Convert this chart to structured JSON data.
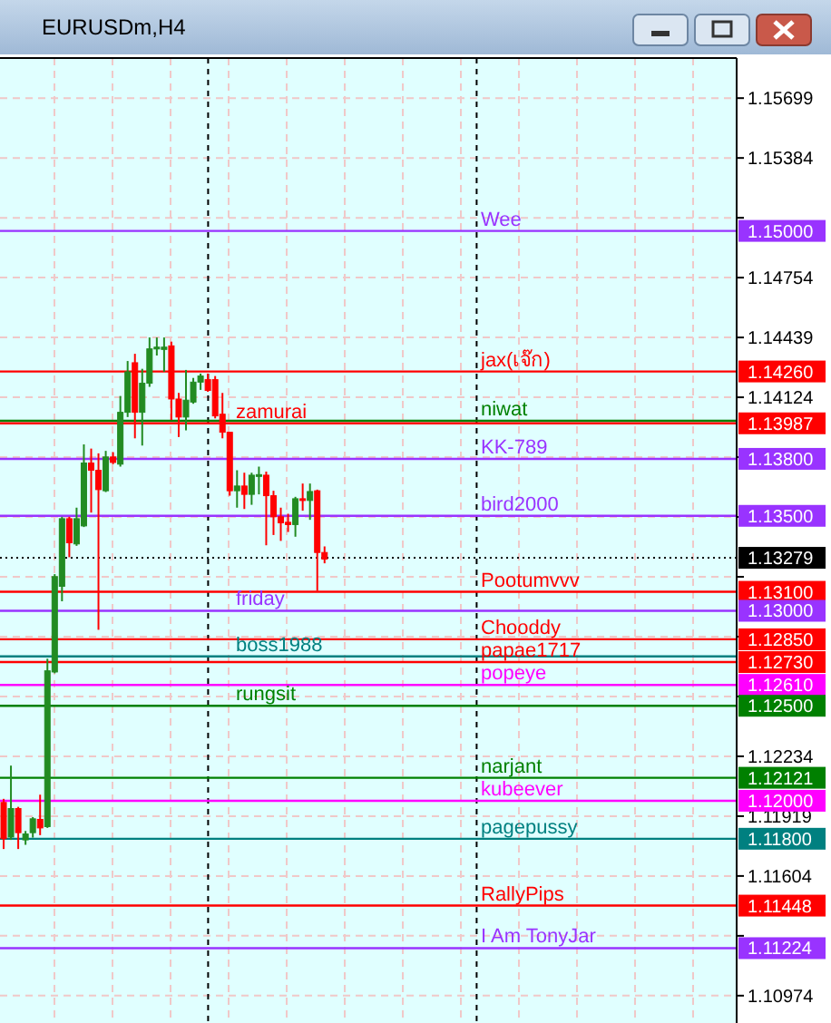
{
  "chart_data": {
    "type": "candlestick",
    "title": "EURUSDm,H4",
    "categories": [
      null,
      null,
      null,
      null,
      null,
      null,
      null,
      null,
      null,
      null,
      null,
      null,
      null,
      null,
      null,
      null,
      null,
      null,
      null,
      null,
      null,
      null,
      null,
      null,
      null,
      null,
      null,
      null,
      null,
      null,
      null,
      null,
      null,
      null,
      null,
      null,
      null,
      null,
      null,
      null,
      null,
      null,
      null,
      null,
      null,
      null,
      null,
      null,
      null,
      null,
      null,
      null,
      null,
      null,
      null,
      null,
      null,
      null,
      null,
      null,
      null,
      null,
      null,
      null,
      null,
      null,
      null,
      null,
      null,
      null,
      null,
      null,
      null,
      null,
      null,
      null,
      null,
      null,
      null,
      null,
      null,
      null,
      null,
      null,
      null,
      null,
      null,
      null,
      null,
      null,
      null,
      null,
      null,
      null,
      null,
      null,
      null,
      null,
      null,
      null,
      null
    ],
    "ohlc": [
      [
        1.11991,
        1.1201,
        1.11746,
        1.118
      ],
      [
        1.11809,
        1.12185,
        1.11794,
        1.11959
      ],
      [
        1.11959,
        1.11968,
        1.11746,
        1.11832
      ],
      [
        1.11794,
        1.11841,
        1.11768,
        1.11825
      ],
      [
        1.11832,
        1.11914,
        1.11806,
        1.11905
      ],
      [
        1.11902,
        1.12032,
        1.11819,
        1.11857
      ],
      [
        1.11864,
        1.12748,
        1.11857,
        1.12684
      ],
      [
        1.12678,
        1.13193,
        1.12671,
        1.1318
      ],
      [
        1.13129,
        1.13495,
        1.1305,
        1.13485
      ],
      [
        1.13485,
        1.13495,
        1.13282,
        1.13358
      ],
      [
        1.13352,
        1.13543,
        1.13342,
        1.13485
      ],
      [
        1.13447,
        1.13876,
        1.13441,
        1.13778
      ],
      [
        1.13778,
        1.13854,
        1.13517,
        1.1374
      ],
      [
        1.1374,
        1.13829,
        1.129,
        1.13638
      ],
      [
        1.13632,
        1.13842,
        1.13625,
        1.1381
      ],
      [
        1.1381,
        1.13835,
        1.13772,
        1.13781
      ],
      [
        1.13772,
        1.14131,
        1.13759,
        1.14045
      ],
      [
        1.14045,
        1.14315,
        1.1402,
        1.14258
      ],
      [
        1.14306,
        1.14353,
        1.13908,
        1.14045
      ],
      [
        1.14045,
        1.14274,
        1.1387,
        1.14198
      ],
      [
        1.14198,
        1.14439,
        1.14179,
        1.14379
      ],
      [
        1.14382,
        1.14439,
        1.14344,
        1.14388
      ],
      [
        1.14376,
        1.14439,
        1.14258,
        1.14388
      ],
      [
        1.14395,
        1.14417,
        1.14004,
        1.14115
      ],
      [
        1.14115,
        1.14147,
        1.13915,
        1.1402
      ],
      [
        1.1402,
        1.14268,
        1.1395,
        1.14109
      ],
      [
        1.14099,
        1.14226,
        1.1409,
        1.14204
      ],
      [
        1.14204,
        1.14249,
        1.14163,
        1.14236
      ],
      [
        1.14217,
        1.14249,
        1.14153,
        1.1416
      ],
      [
        1.14217,
        1.14236,
        1.14013,
        1.14026
      ],
      [
        1.14035,
        1.14147,
        1.13908,
        1.1394
      ],
      [
        1.1394,
        1.1394,
        1.13606,
        1.13632
      ],
      [
        1.13632,
        1.1374,
        1.13543,
        1.13657
      ],
      [
        1.13657,
        1.13727,
        1.13536,
        1.13613
      ],
      [
        1.13613,
        1.13727,
        1.13558,
        1.13714
      ],
      [
        1.13708,
        1.13759,
        1.13613,
        1.13717
      ],
      [
        1.13714,
        1.13733,
        1.13345,
        1.13606
      ],
      [
        1.13606,
        1.13632,
        1.13399,
        1.13495
      ],
      [
        1.13495,
        1.13543,
        1.13368,
        1.13463
      ],
      [
        1.13466,
        1.13511,
        1.13415,
        1.13454
      ],
      [
        1.13454,
        1.136,
        1.1339,
        1.1359
      ],
      [
        1.1359,
        1.1367,
        1.13527,
        1.13581
      ],
      [
        1.13581,
        1.1367,
        1.13479,
        1.13628
      ],
      [
        1.13632,
        1.13638,
        1.13104,
        1.13307
      ],
      [
        1.13307,
        1.13339,
        1.1325,
        1.13272
      ],
      null,
      null,
      null,
      null,
      null,
      null,
      null,
      null,
      null,
      null,
      null,
      null,
      null,
      null,
      null,
      null,
      null,
      null,
      null,
      null,
      null,
      null,
      null,
      null,
      null,
      null,
      null,
      null,
      null,
      null,
      null,
      null,
      null,
      null,
      null,
      null,
      null,
      null,
      null,
      null,
      null,
      null,
      null,
      null,
      null,
      null,
      null,
      null,
      null,
      null,
      null,
      null,
      null,
      null,
      null,
      null
    ],
    "colors": [
      "#ff0000",
      "#228b22",
      "#ff0000",
      "#228b22",
      "#228b22",
      "#ff0000",
      "#228b22",
      "#228b22",
      "#228b22",
      "#ff0000",
      "#228b22",
      "#228b22",
      "#ff0000",
      "#ff0000",
      "#228b22",
      "#ff0000",
      "#228b22",
      "#228b22",
      "#ff0000",
      "#228b22",
      "#228b22",
      "#228b22",
      "#228b22",
      "#ff0000",
      "#ff0000",
      "#228b22",
      "#228b22",
      "#228b22",
      "#ff0000",
      "#ff0000",
      "#ff0000",
      "#ff0000",
      "#228b22",
      "#ff0000",
      "#228b22",
      "#228b22",
      "#ff0000",
      "#ff0000",
      "#ff0000",
      "#ff0000",
      "#228b22",
      "#ff0000",
      "#228b22",
      "#ff0000",
      "#ff0000",
      null,
      null,
      null,
      null,
      null,
      null,
      null,
      null,
      null,
      null,
      null,
      null,
      null,
      null,
      null,
      null,
      null,
      null,
      null,
      null,
      null,
      null,
      null,
      null,
      null,
      null,
      null,
      null,
      null,
      null,
      null,
      null,
      null,
      null,
      null,
      null,
      null,
      null,
      null,
      null,
      null,
      null,
      null,
      null,
      null,
      null,
      null,
      null,
      null,
      null,
      null,
      null,
      null,
      null,
      null,
      null
    ],
    "ylim": [
      1.1083,
      1.1591
    ],
    "yticks": [
      1.15699,
      1.15384,
      {
        "value": 1.15069,
        "label": null
      },
      1.14754,
      1.14439,
      1.14124,
      {
        "value": 1.13809,
        "label": null
      },
      {
        "value": 1.13494,
        "label": null
      },
      {
        "value": 1.13179,
        "label": null
      },
      {
        "value": 1.12864,
        "label": null
      },
      {
        "value": 1.12549,
        "label": null
      },
      1.12234,
      1.11919,
      1.11604,
      {
        "value": 1.11289,
        "label": null
      },
      1.10974
    ],
    "annotations": [
      "1.15000",
      "1.14260",
      "1.13987",
      "1.13800",
      "1.13500",
      "1.13279",
      "1.13100",
      "1.13000",
      "1.12850",
      "1.12730",
      "1.12610",
      "1.12500",
      "1.12121",
      "1.12000",
      "1.11800",
      "1.11448",
      "1.11224"
    ],
    "grid": true,
    "ref_lines": [
      {
        "axis": "y",
        "value": 1.15,
        "label": "Wee",
        "color": "#9933ff"
      },
      {
        "axis": "y",
        "value": 1.1426,
        "label": "jax(เจ๊ก)",
        "color": "#ff0000"
      },
      {
        "axis": "y",
        "value": 1.14,
        "label": "niwat",
        "color": "#008000"
      },
      {
        "axis": "y",
        "value": 1.13987,
        "label": "zamurai",
        "color": "#ff0000"
      },
      {
        "axis": "y",
        "value": 1.138,
        "label": "KK-789",
        "color": "#9933ff"
      },
      {
        "axis": "y",
        "value": 1.135,
        "label": "bird2000",
        "color": "#9933ff"
      },
      {
        "axis": "y",
        "value": 1.13279,
        "label": null,
        "color": "#000000",
        "line_style": "dotted"
      },
      {
        "axis": "y",
        "value": 1.131,
        "label": "Pootumvvv",
        "color": "#ff0000"
      },
      {
        "axis": "y",
        "value": 1.13,
        "label": "friday",
        "color": "#9933ff"
      },
      {
        "axis": "y",
        "value": 1.1285,
        "label": "Chooddy",
        "color": "#ff0000"
      },
      {
        "axis": "y",
        "value": 1.1276,
        "label": "boss1988",
        "color": "#008080"
      },
      {
        "axis": "y",
        "value": 1.1273,
        "label": "papae1717",
        "color": "#ff0000"
      },
      {
        "axis": "y",
        "value": 1.1261,
        "label": "popeye",
        "color": "#ff00ff"
      },
      {
        "axis": "y",
        "value": 1.125,
        "label": "rungsit",
        "color": "#008000"
      },
      {
        "axis": "y",
        "value": 1.12121,
        "label": "narjant",
        "color": "#008000"
      },
      {
        "axis": "y",
        "value": 1.12,
        "label": "kubeever",
        "color": "#ff00ff"
      },
      {
        "axis": "y",
        "value": 1.118,
        "label": "pagepussy",
        "color": "#008080"
      },
      {
        "axis": "y",
        "value": 1.11448,
        "label": "RallyPips",
        "color": "#ff0000"
      },
      {
        "axis": "y",
        "value": 1.11224,
        "label": "I Am TonyJar",
        "color": "#9933ff"
      }
    ]
  }
}
